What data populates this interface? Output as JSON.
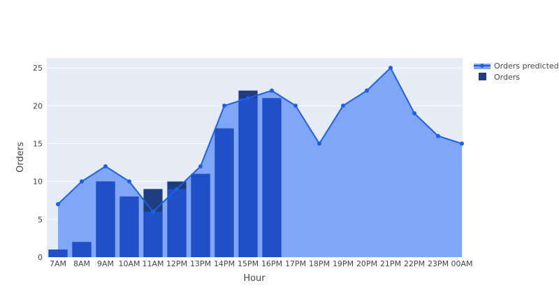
{
  "chart_data": {
    "type": "bar",
    "categories": [
      "7AM",
      "8AM",
      "9AM",
      "10AM",
      "11AM",
      "12PM",
      "13PM",
      "14PM",
      "15PM",
      "16PM",
      "17PM",
      "18PM",
      "19PM",
      "20PM",
      "21PM",
      "22PM",
      "23PM",
      "00AM"
    ],
    "series": [
      {
        "name": "Orders predicted",
        "type": "area",
        "values": [
          7,
          10,
          12,
          10,
          6,
          9,
          12,
          20,
          21,
          22,
          20,
          15,
          20,
          22,
          25,
          19,
          16,
          15
        ],
        "color": "#1f5fe6",
        "fill_color": "#7fa6f7"
      },
      {
        "name": "Orders",
        "type": "bar",
        "values": [
          1,
          2,
          10,
          8,
          9,
          10,
          11,
          17,
          22,
          21,
          null,
          null,
          null,
          null,
          null,
          null,
          null,
          null
        ],
        "color": "#1e3d7f"
      }
    ],
    "xlabel": "Hour",
    "ylabel": "Orders",
    "ylim": [
      0,
      26.3
    ],
    "yticks": [
      0,
      5,
      10,
      15,
      20,
      25
    ],
    "grid": true,
    "legend": "top-right",
    "plot_bg": "#e5ecf6",
    "overlap_color": "#2050c8"
  }
}
